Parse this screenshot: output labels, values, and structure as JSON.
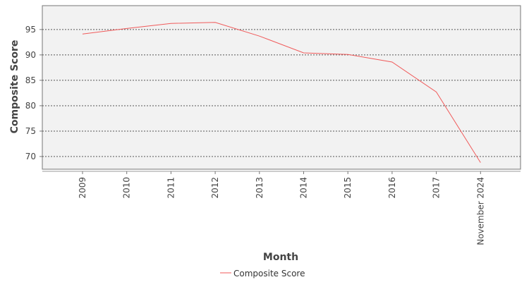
{
  "chart_data": {
    "type": "line",
    "categories": [
      "2009",
      "2010",
      "2011",
      "2012",
      "2013",
      "2014",
      "2015",
      "2016",
      "2017",
      "November 2024"
    ],
    "series": [
      {
        "name": "Composite Score",
        "values": [
          94.1,
          95.2,
          96.2,
          96.4,
          93.7,
          90.4,
          90.1,
          88.6,
          82.7,
          68.8
        ],
        "color": "#f05a5a"
      }
    ],
    "xlabel": "Month",
    "ylabel": "Composite Score",
    "ylim": [
      67.5,
      99.7
    ],
    "yticks": [
      70,
      75,
      80,
      85,
      90,
      95
    ],
    "grid": true,
    "plot_background": "#f2f2f2",
    "grid_color": "#555555",
    "legend_position": "bottom-center"
  }
}
